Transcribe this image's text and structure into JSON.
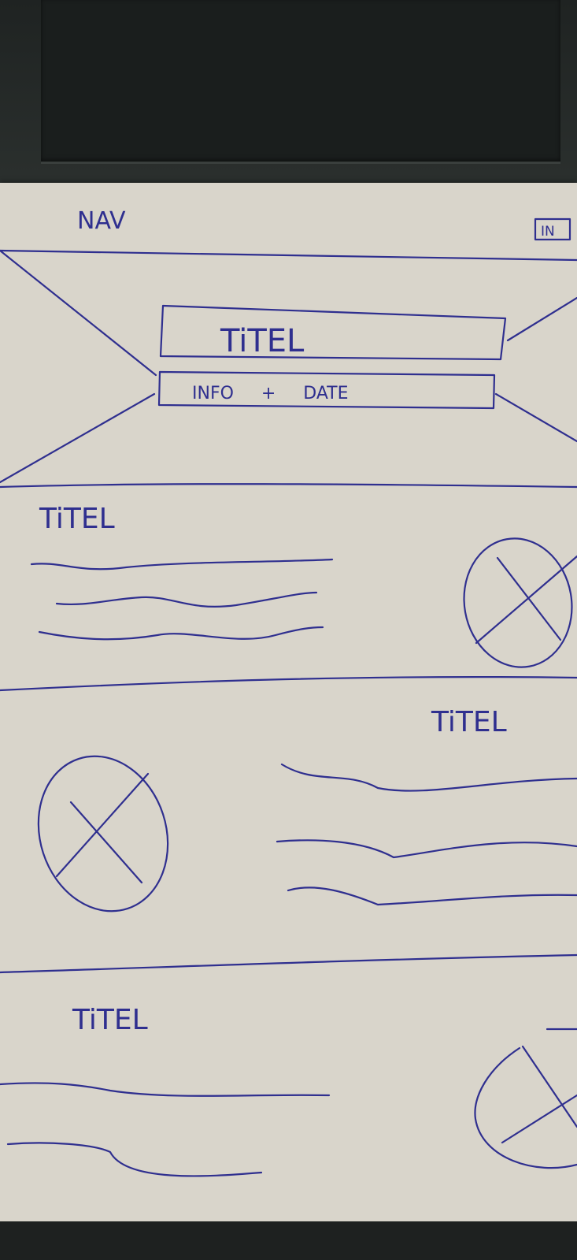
{
  "nav": {
    "label": "NAV",
    "button_label": "IN"
  },
  "hero": {
    "title": "TiTEL",
    "subtitle": "INFO     +     DATE"
  },
  "sections": [
    {
      "title": "TiTEL"
    },
    {
      "title": "TiTEL"
    },
    {
      "title": "TiTEL"
    }
  ],
  "colors": {
    "ink": "#2f2f8f",
    "paper": "#d9d5cb",
    "background": "#2a2d2c"
  }
}
